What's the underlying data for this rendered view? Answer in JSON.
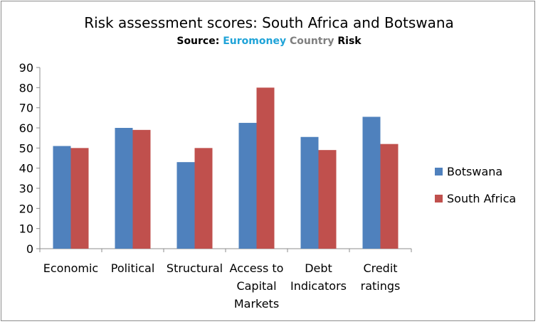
{
  "chart_data": {
    "type": "bar",
    "title": "Risk assessment scores: South Africa and Botswana",
    "subtitle": {
      "prefix": "Source",
      "sep": ": ",
      "word1": "Euromoney",
      "word2": "Country",
      "word3": "Risk"
    },
    "categories": [
      [
        "Economic"
      ],
      [
        "Political"
      ],
      [
        "Structural"
      ],
      [
        "Access to",
        "Capital",
        "Markets"
      ],
      [
        "Debt",
        "Indicators"
      ],
      [
        "Credit",
        "ratings"
      ]
    ],
    "series": [
      {
        "name": "Botswana",
        "color": "#4f81bd",
        "values": [
          51,
          60,
          43,
          62.5,
          55.5,
          65.5
        ]
      },
      {
        "name": "South Africa",
        "color": "#c0504d",
        "values": [
          50,
          59,
          50,
          80,
          49,
          52
        ]
      }
    ],
    "ylim": [
      0,
      90
    ],
    "yticks": [
      0,
      10,
      20,
      30,
      40,
      50,
      60,
      70,
      80,
      90
    ],
    "legend_position": "right",
    "grid": false
  }
}
